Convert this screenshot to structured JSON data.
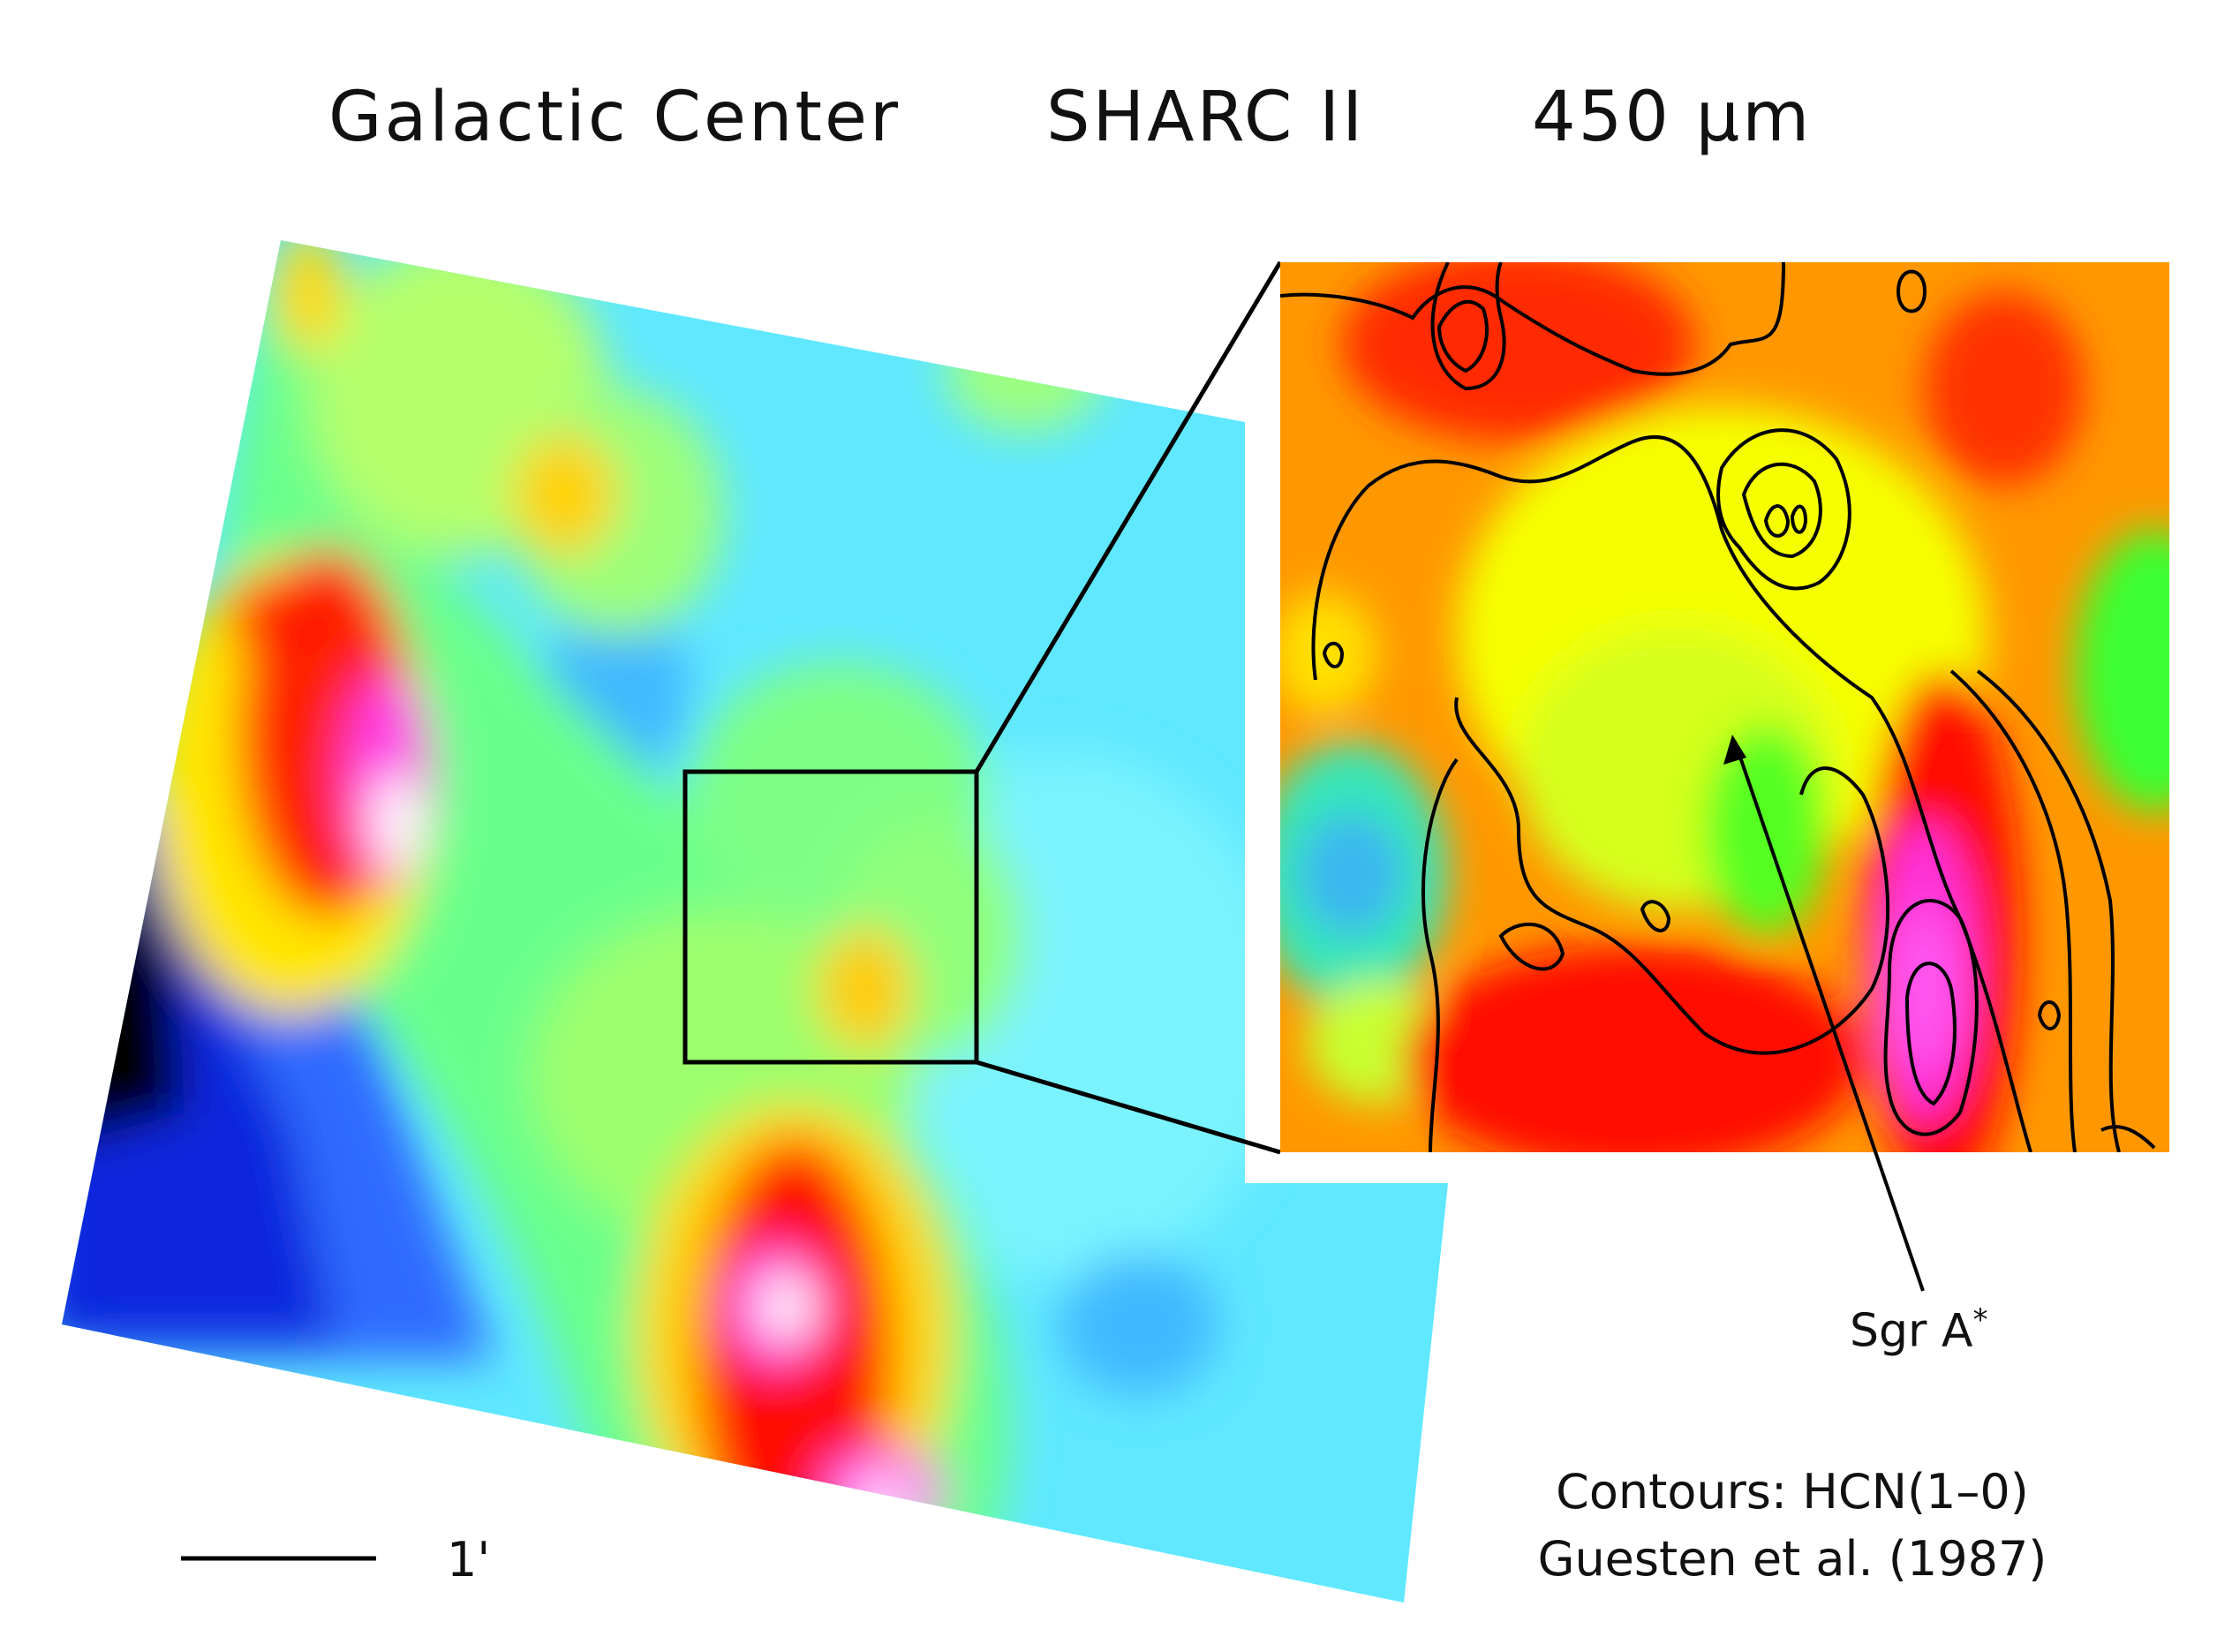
{
  "title": {
    "object": "Galactic Center",
    "instrument": "SHARC II",
    "wavelength": "450 μm"
  },
  "annotations": {
    "sgr_a_name": "Sgr A",
    "sgr_a_superscript": "*",
    "contours_line": "Contours: HCN(1–0)",
    "reference_line": "Guesten et al. (1987)",
    "scale_bar_label": "1'"
  },
  "colors": {
    "colormap": [
      "#000000",
      "#0014d2",
      "#2e6bff",
      "#5fd7ff",
      "#8dffe9",
      "#d8ff76",
      "#ffff00",
      "#ff9c00",
      "#ff0000",
      "#ff2bd6",
      "#ffffff"
    ],
    "contour_color": "#000000"
  },
  "icons": {
    "sgr_a_arrow": "arrow-up-icon"
  }
}
